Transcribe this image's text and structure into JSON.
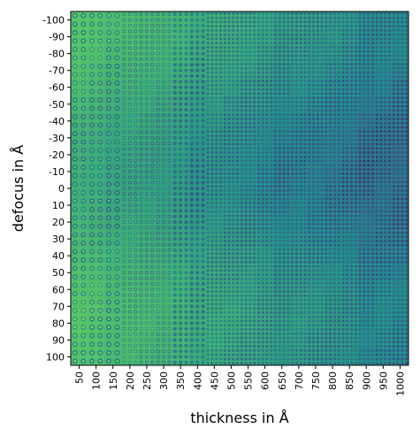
{
  "chart_data": {
    "type": "heatmap",
    "x_label": "thickness in Å",
    "y_label": "defocus in Å",
    "x_categories": [
      50,
      100,
      150,
      200,
      250,
      300,
      350,
      400,
      450,
      500,
      550,
      600,
      650,
      700,
      750,
      800,
      850,
      900,
      950,
      1000
    ],
    "y_categories": [
      -100,
      -90,
      -80,
      -70,
      -60,
      -50,
      -40,
      -30,
      -20,
      -10,
      0,
      10,
      20,
      30,
      40,
      50,
      60,
      70,
      80,
      90,
      100
    ],
    "colormap": "viridis"
  }
}
